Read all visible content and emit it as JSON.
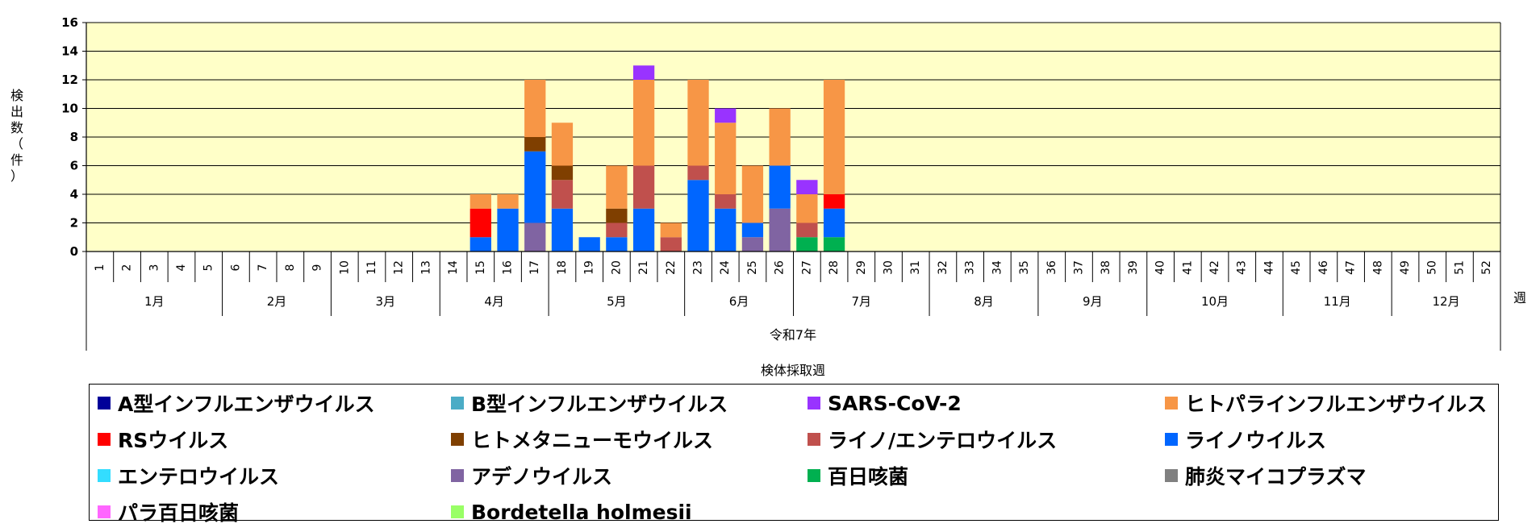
{
  "chart_data": {
    "type": "bar",
    "stacked": true,
    "ylabel": "検出数（件）",
    "ylim": [
      0,
      16
    ],
    "yticks": [
      0,
      2,
      4,
      6,
      8,
      10,
      12,
      14,
      16
    ],
    "grid": true,
    "plot_background": "#FFFFC8",
    "xlabel": "検体採取週",
    "x_unit": "週",
    "year_label": "令和7年",
    "weeks": [
      "1",
      "2",
      "3",
      "4",
      "5",
      "6",
      "7",
      "8",
      "9",
      "10",
      "11",
      "12",
      "13",
      "14",
      "15",
      "16",
      "17",
      "18",
      "19",
      "20",
      "21",
      "22",
      "23",
      "24",
      "25",
      "26",
      "27",
      "28",
      "29",
      "30",
      "31",
      "32",
      "33",
      "34",
      "35",
      "36",
      "37",
      "38",
      "39",
      "40",
      "41",
      "42",
      "43",
      "44",
      "45",
      "46",
      "47",
      "48",
      "49",
      "50",
      "51",
      "52"
    ],
    "months": [
      {
        "label": "1月",
        "weeks": 5
      },
      {
        "label": "2月",
        "weeks": 4
      },
      {
        "label": "3月",
        "weeks": 4
      },
      {
        "label": "4月",
        "weeks": 4
      },
      {
        "label": "5月",
        "weeks": 5
      },
      {
        "label": "6月",
        "weeks": 4
      },
      {
        "label": "7月",
        "weeks": 5
      },
      {
        "label": "8月",
        "weeks": 4
      },
      {
        "label": "9月",
        "weeks": 4
      },
      {
        "label": "10月",
        "weeks": 5
      },
      {
        "label": "11月",
        "weeks": 4
      },
      {
        "label": "12月",
        "weeks": 4
      }
    ],
    "series": [
      {
        "name": "A型インフルエンザウイルス",
        "color": "#000099",
        "values": {}
      },
      {
        "name": "B型インフルエンザウイルス",
        "color": "#4BACC6",
        "values": {}
      },
      {
        "name": "SARS-CoV-2",
        "color": "#9933FF",
        "values": {
          "21": 1,
          "24": 1,
          "27": 1
        }
      },
      {
        "name": "ヒトパラインフルエンザウイルス",
        "color": "#F79646",
        "values": {
          "15": 1,
          "16": 1,
          "17": 4,
          "18": 3,
          "20": 3,
          "21": 6,
          "22": 1,
          "23": 6,
          "24": 5,
          "25": 4,
          "26": 4,
          "27": 2,
          "28": 8
        }
      },
      {
        "name": "RSウイルス",
        "color": "#FF0000",
        "values": {
          "15": 2,
          "28": 1
        }
      },
      {
        "name": "ヒトメタニューモウイルス",
        "color": "#7F3F00",
        "values": {
          "17": 1,
          "18": 1,
          "20": 1
        }
      },
      {
        "name": "ライノ/エンテロウイルス",
        "color": "#C0504D",
        "values": {
          "18": 2,
          "20": 1,
          "21": 3,
          "22": 1,
          "23": 1,
          "24": 1,
          "27": 1
        }
      },
      {
        "name": "ライノウイルス",
        "color": "#0066FF",
        "values": {
          "15": 1,
          "16": 3,
          "17": 5,
          "18": 3,
          "19": 1,
          "20": 1,
          "21": 3,
          "23": 5,
          "24": 3,
          "25": 1,
          "26": 3,
          "28": 2
        }
      },
      {
        "name": "エンテロウイルス",
        "color": "#33DDFF",
        "values": {}
      },
      {
        "name": "アデノウイルス",
        "color": "#8064A2",
        "values": {
          "17": 2,
          "25": 1,
          "26": 3
        }
      },
      {
        "name": "百日咳菌",
        "color": "#00B050",
        "values": {
          "27": 1,
          "28": 1
        }
      },
      {
        "name": "肺炎マイコプラズマ",
        "color": "#808080",
        "values": {}
      },
      {
        "name": "パラ百日咳菌",
        "color": "#FF66FF",
        "values": {}
      },
      {
        "name": "Bordetella holmesii",
        "color": "#99FF66",
        "values": {}
      }
    ],
    "stack_order": [
      "百日咳菌",
      "アデノウイルス",
      "ライノウイルス",
      "ライノ/エンテロウイルス",
      "ヒトメタニューモウイルス",
      "RSウイルス",
      "ヒトパラインフルエンザウイルス",
      "SARS-CoV-2"
    ]
  }
}
